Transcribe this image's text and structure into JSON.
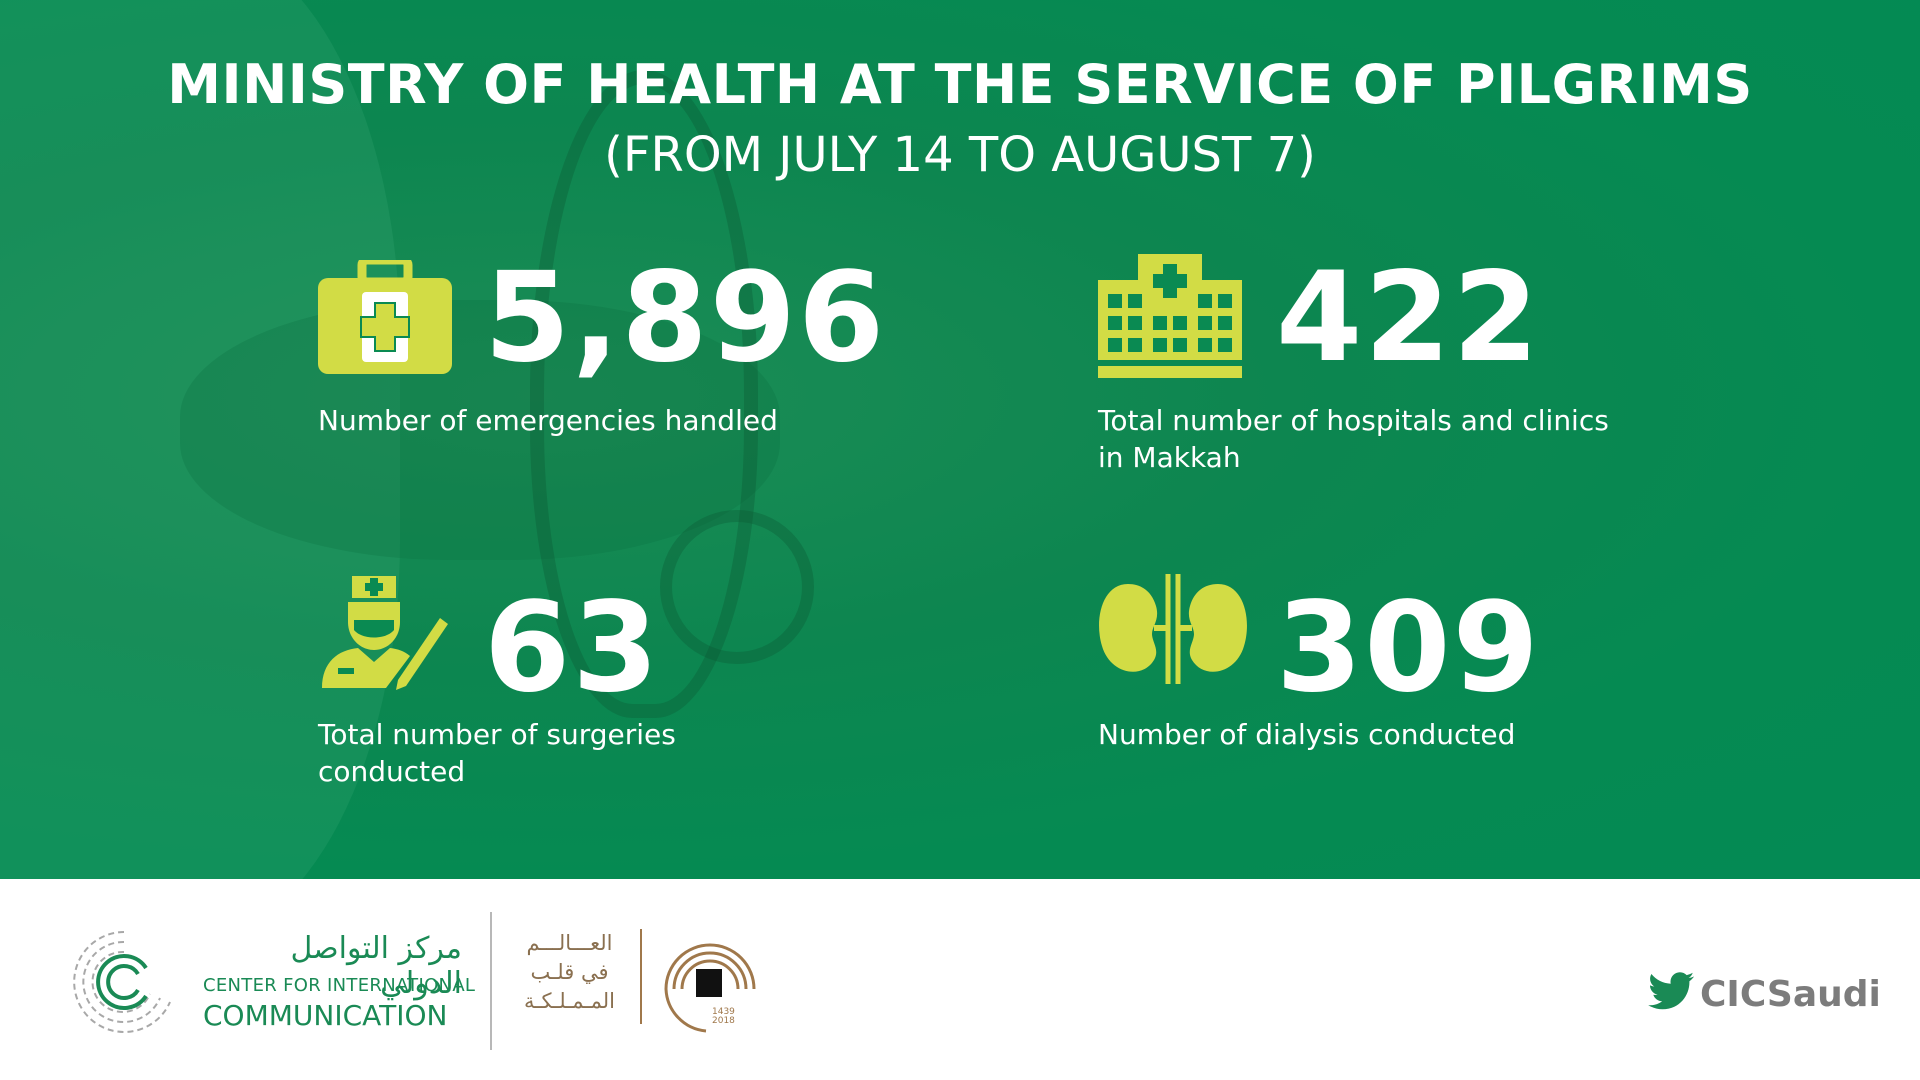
{
  "banner": {
    "title": "MINISTRY OF HEALTH AT THE SERVICE OF PILGRIMS",
    "subtitle": "(FROM JULY 14 TO AUGUST 7)"
  },
  "stats": {
    "emergencies": {
      "value": "5,896",
      "label": "Number of emergencies handled",
      "icon": "first-aid-kit-icon"
    },
    "hospitals": {
      "value": "422",
      "label": "Total number of hospitals and clinics\nin Makkah",
      "icon": "hospital-building-icon"
    },
    "surgeries": {
      "value": "63",
      "label": "Total number of surgeries\nconducted",
      "icon": "surgeon-icon"
    },
    "dialysis": {
      "value": "309",
      "label": "Number of dialysis conducted",
      "icon": "kidneys-icon"
    }
  },
  "footer": {
    "cic_arabic": "مركز التواصل الدولي",
    "cic_line1": "CENTER FOR INTERNATIONAL",
    "cic_line2": "COMMUNICATION",
    "arabic_slogan": "العـــالـــم\nفي قلـب\nالمـمـلـكـة",
    "kaaba_year_hijri": "1439",
    "kaaba_year_gregorian": "2018",
    "twitter_handle": "CICSaudi"
  },
  "colors": {
    "banner_green": "#0a8a52",
    "icon_yellow": "#d2dc45",
    "text_white": "#ffffff",
    "cic_green": "#1a8a55",
    "gold": "#a0784b",
    "handle_gray": "#7c7c7c"
  }
}
